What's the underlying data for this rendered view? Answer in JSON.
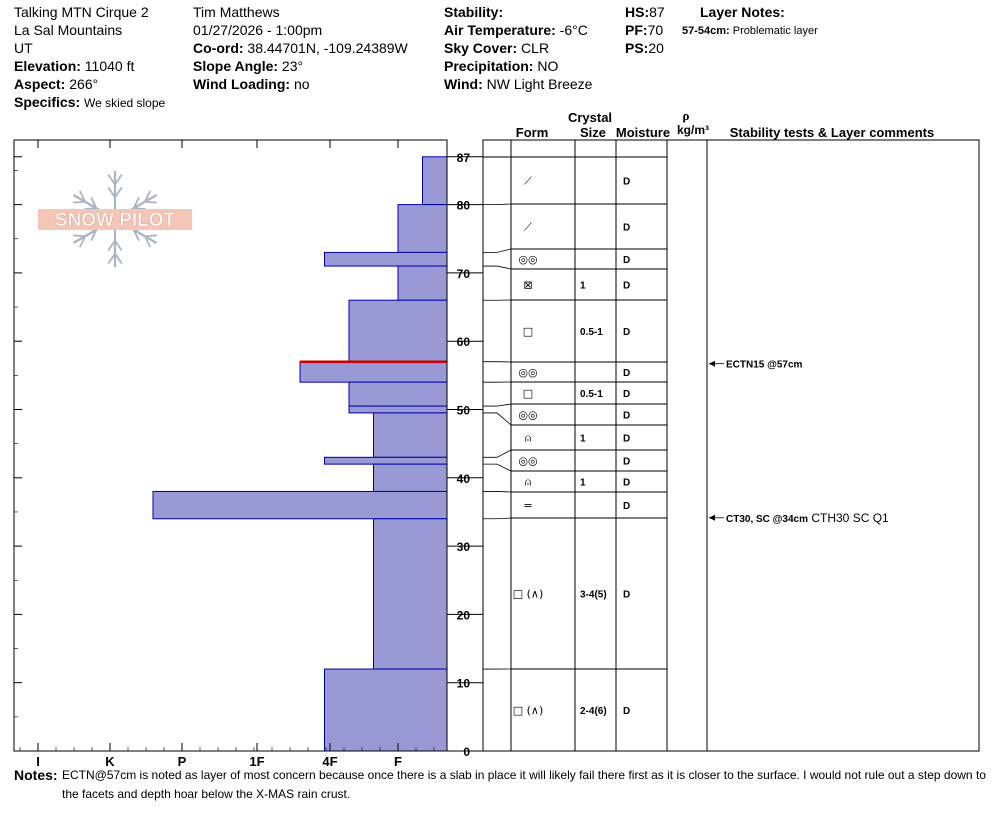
{
  "header": {
    "location_name": "Talking MTN Cirque 2",
    "range": "La Sal Mountains",
    "state": "UT",
    "elevation_label": "Elevation:",
    "elevation_value": " 11040 ft",
    "aspect_label": "Aspect:",
    "aspect_value": " 266°",
    "specifics_label": "Specifics:",
    "specifics_value": "We skied slope",
    "observer": "Tim Matthews",
    "datetime": "01/27/2026 - 1:00pm",
    "coord_label": "Co-ord:",
    "coord_value": " 38.44701N, -109.24389W",
    "slope_label": "Slope Angle:",
    "slope_value": " 23°",
    "wind_loading_label": "Wind Loading:",
    "wind_loading_value": " no",
    "stability_label": "Stability:",
    "air_temp_label": "Air Temperature:",
    "air_temp_value": " -6°C",
    "sky_label": "Sky Cover:",
    "sky_value": " CLR",
    "precip_label": "Precipitation:",
    "precip_value": " NO",
    "wind_label": "Wind:",
    "wind_value": "  NW Light Breeze",
    "hs_label": "HS:",
    "hs_value": "87",
    "pf_label": "PF:",
    "pf_value": "70",
    "ps_label": "PS:",
    "ps_value": "20",
    "layer_notes_label": "Layer Notes:",
    "layer_note_range": "57-54cm:",
    "layer_note_text": " Problematic layer"
  },
  "logo_text": "SNOW PILOT",
  "columns": {
    "crystal": "Crystal",
    "form": "Form",
    "size": "Size",
    "moisture": "Moisture",
    "rho": "ρ",
    "density": "kg/m³",
    "stability": "Stability tests & Layer comments"
  },
  "notes": {
    "label": "Notes:",
    "text": "ECTN@57cm is noted as layer of most concern because once there is a slab in place it will likely fail there first as it is closer to the surface. I would not rule out a step down to the facets and depth hoar below the X-MAS rain crust."
  },
  "chart_data": {
    "type": "bar",
    "orientation": "horizontal",
    "x_axis": {
      "tick_labels": [
        "I",
        "K",
        "P",
        "1F",
        "4F",
        "F"
      ],
      "reversed": true
    },
    "y_axis": {
      "min": 0,
      "max": 90,
      "tick_labels": [
        0,
        10,
        20,
        30,
        40,
        50,
        60,
        70,
        80,
        87
      ]
    },
    "hand_hardness_scale": {
      "F": 1,
      "4F": 2,
      "1F": 3,
      "P": 4,
      "K": 5,
      "I": 6
    },
    "layers": [
      {
        "top": 87,
        "bottom": 80,
        "hardness": 0.35,
        "form": "⟋",
        "size": "",
        "moisture": "D"
      },
      {
        "top": 80,
        "bottom": 73,
        "hardness": 0.7,
        "form": "⟋",
        "size": "",
        "moisture": "D"
      },
      {
        "top": 73,
        "bottom": 71,
        "hardness": 1.75,
        "form": "◎◎",
        "size": "",
        "moisture": "D"
      },
      {
        "top": 71,
        "bottom": 66,
        "hardness": 0.7,
        "form": "⊠",
        "size": "1",
        "moisture": "D"
      },
      {
        "top": 66,
        "bottom": 57,
        "hardness": 1.4,
        "form": "□",
        "size": "0.5-1",
        "moisture": "D"
      },
      {
        "top": 57,
        "bottom": 54,
        "hardness": 2.1,
        "form": "◎◎",
        "size": "",
        "moisture": "D"
      },
      {
        "top": 54,
        "bottom": 50.5,
        "hardness": 1.4,
        "form": "□",
        "size": "0.5-1",
        "moisture": "D"
      },
      {
        "top": 50.5,
        "bottom": 49.5,
        "hardness": 1.4,
        "form": "◎◎",
        "size": "",
        "moisture": "D"
      },
      {
        "top": 49.5,
        "bottom": 43,
        "hardness": 1.05,
        "form": "⍝",
        "size": "1",
        "moisture": "D"
      },
      {
        "top": 43,
        "bottom": 42,
        "hardness": 1.75,
        "form": "◎◎",
        "size": "",
        "moisture": "D"
      },
      {
        "top": 42,
        "bottom": 38,
        "hardness": 1.05,
        "form": "⍝",
        "size": "1",
        "moisture": "D"
      },
      {
        "top": 38,
        "bottom": 34,
        "hardness": 4.2,
        "form": "=",
        "size": "",
        "moisture": "D"
      },
      {
        "top": 34,
        "bottom": 12,
        "hardness": 1.05,
        "form": "□ (∧)",
        "size": "3-4(5)",
        "moisture": "D"
      },
      {
        "top": 12,
        "bottom": 0,
        "hardness": 1.75,
        "form": "□ (∧)",
        "size": "2-4(6)",
        "moisture": "D"
      }
    ],
    "problem_layer_cm": 57,
    "stability_tests": [
      {
        "depth": 57,
        "label": "ECTN15 @57cm",
        "extra": ""
      },
      {
        "depth": 34,
        "label": "CT30, SC @34cm",
        "extra": " CTH30 SC Q1"
      }
    ],
    "colors": {
      "bar_fill": "#9999d6",
      "bar_stroke": "#0000aa",
      "problem": "#cc0000",
      "logo_fill": "#f3c6b8",
      "logo_snowflake": "#aab4c4"
    }
  }
}
